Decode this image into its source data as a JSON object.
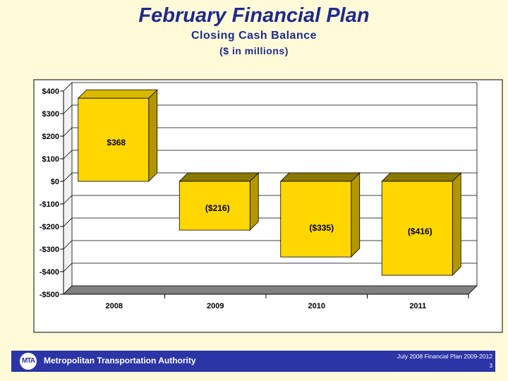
{
  "slide": {
    "title": "February Financial Plan",
    "subtitle": "Closing Cash Balance",
    "units": "($ in millions)"
  },
  "chart_data": {
    "type": "bar",
    "title": "Closing Cash Balance",
    "xlabel": "",
    "ylabel": "$ in millions",
    "categories": [
      "2008",
      "2009",
      "2010",
      "2011"
    ],
    "values": [
      368,
      -216,
      -335,
      -416
    ],
    "data_labels": [
      "$368",
      "($216)",
      "($335)",
      "($416)"
    ],
    "ylim": [
      -500,
      400
    ],
    "ticks": [
      400,
      300,
      200,
      100,
      0,
      -100,
      -200,
      -300,
      -400,
      -500
    ],
    "tick_labels": [
      "$400",
      "$300",
      "$200",
      "$100",
      "$0",
      "-$100",
      "-$200",
      "-$300",
      "-$400",
      "-$500"
    ],
    "grid": true,
    "colors": {
      "bar_front": "#ffd700",
      "bar_side": "#b39700",
      "bar_top": "#8c7800",
      "plot_bg": "#ffffff",
      "wall": "#a6a6a6",
      "floor": "#808080",
      "gridline": "#000000"
    }
  },
  "footer": {
    "logo_text": "MTA",
    "organization": "Metropolitan Transportation Authority",
    "plan_label": "July 2008 Financial Plan 2009-2012",
    "page_number": "3"
  }
}
